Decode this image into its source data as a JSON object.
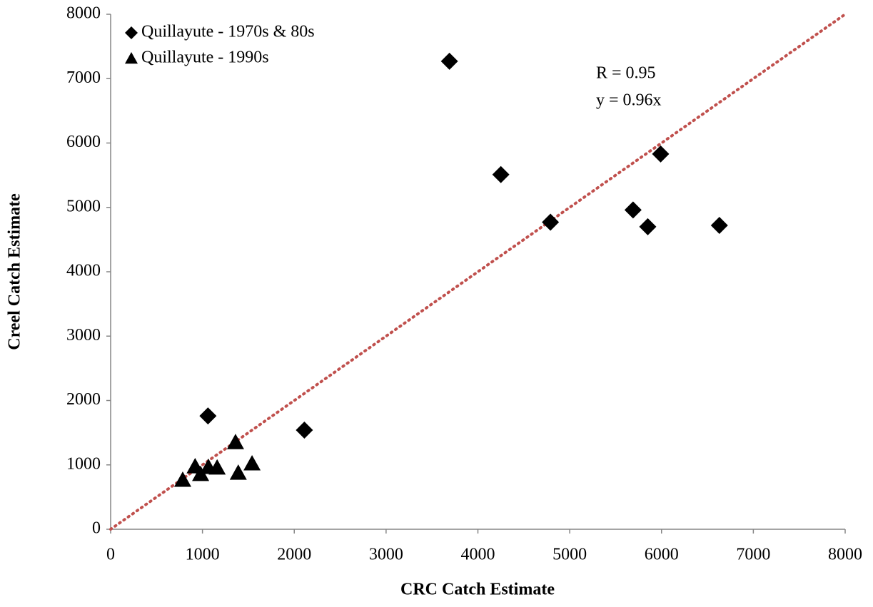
{
  "chart_data": {
    "type": "scatter",
    "xlabel": "CRC Catch Estimate",
    "ylabel": "Creel Catch Estimate",
    "xlim": [
      0,
      8000
    ],
    "ylim": [
      0,
      8000
    ],
    "xticks": [
      0,
      1000,
      2000,
      3000,
      4000,
      5000,
      6000,
      7000,
      8000
    ],
    "yticks": [
      0,
      1000,
      2000,
      3000,
      4000,
      5000,
      6000,
      7000,
      8000
    ],
    "legend": "upper left",
    "series": [
      {
        "name": "Quillayute - 1970s & 80s",
        "color": "#000000",
        "marker": "diamond",
        "x": [
          3690,
          4250,
          4790,
          5690,
          5850,
          5990,
          6630,
          1060,
          2110
        ],
        "values": [
          7270,
          5510,
          4770,
          4960,
          4700,
          5830,
          4720,
          1760,
          1540
        ]
      },
      {
        "name": "Quillayute - 1990s",
        "color": "#000000",
        "marker": "triangle",
        "x": [
          785,
          920,
          980,
          1065,
          1160,
          1360,
          1390,
          1540
        ],
        "values": [
          765,
          975,
          855,
          965,
          955,
          1350,
          875,
          1020
        ]
      }
    ],
    "trendline": {
      "color": "#c0504d",
      "x": [
        0,
        8000
      ],
      "values": [
        0,
        8000
      ]
    },
    "annotations": [
      "R = 0.95",
      "y = 0.96x"
    ]
  }
}
